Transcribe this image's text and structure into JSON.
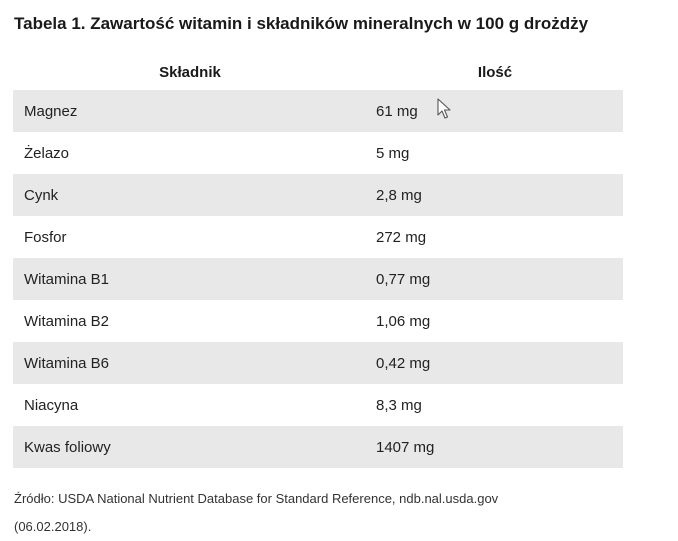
{
  "table": {
    "caption": "Tabela 1. Zawartość witamin i składników mineralnych w 100 g drożdży",
    "headers": [
      "Składnik",
      "Ilość"
    ],
    "rows": [
      {
        "ingredient": "Magnez",
        "amount": "61 mg"
      },
      {
        "ingredient": "Żelazo",
        "amount": "5 mg"
      },
      {
        "ingredient": "Cynk",
        "amount": "2,8 mg"
      },
      {
        "ingredient": "Fosfor",
        "amount": "272 mg"
      },
      {
        "ingredient": "Witamina B1",
        "amount": "0,77 mg"
      },
      {
        "ingredient": "Witamina B2",
        "amount": "1,06 mg"
      },
      {
        "ingredient": "Witamina B6",
        "amount": "0,42 mg"
      },
      {
        "ingredient": "Niacyna",
        "amount": "8,3 mg"
      },
      {
        "ingredient": "Kwas foliowy",
        "amount": "1407 mg"
      }
    ],
    "source_line1": "Źródło: USDA National Nutrient Database for Standard Reference, ndb.nal.usda.gov",
    "source_line2": "(06.02.2018)."
  },
  "colors": {
    "row_shade": "#e8e8e8",
    "text": "#222222"
  },
  "icons": {
    "cursor": "mouse-pointer-icon"
  }
}
